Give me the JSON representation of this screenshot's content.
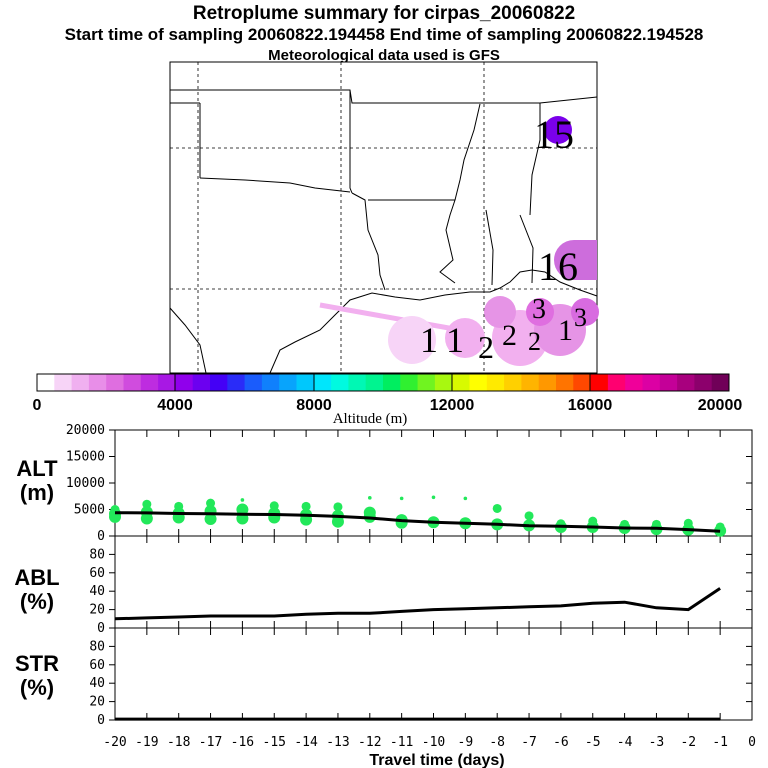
{
  "header": {
    "title": "Retroplume summary for cirpas_20060822",
    "sampling": "Start time of sampling 20060822.194458     End time of sampling 20060822.194528",
    "met": "Meteorological data used is GFS"
  },
  "colors": {
    "scale": [
      "#ffffff",
      "#f7d4f7",
      "#f0b0f0",
      "#e88ee8",
      "#df6ee0",
      "#d04cde",
      "#be2ce0",
      "#a818e4",
      "#9000ec",
      "#6c00f0",
      "#4400f6",
      "#2a2cf8",
      "#1a5cfc",
      "#1080fc",
      "#08a4fc",
      "#00c8fc",
      "#00e6fc",
      "#00fae0",
      "#00f8b4",
      "#00f490",
      "#00ee60",
      "#30f030",
      "#70f420",
      "#a8f810",
      "#d8fa00",
      "#ffff00",
      "#ffea00",
      "#ffd000",
      "#ffb400",
      "#ff9800",
      "#ff7400",
      "#ff4800",
      "#ff0000",
      "#ff0070",
      "#f0009a",
      "#dc00a4",
      "#c40098",
      "#a8007e",
      "#8c006c",
      "#700058"
    ],
    "dots": "#22e85a",
    "line": "#000000",
    "plume_pink": "#f2b0ef",
    "plume_purple": "#cd6ddc",
    "label_15": "#7a00ea"
  },
  "map": {
    "labels": [
      "15",
      "16",
      "1",
      "1",
      "1",
      "2",
      "2",
      "3",
      "2",
      "3"
    ]
  },
  "colorbar": {
    "ticks": [
      "0",
      "4000",
      "8000",
      "12000",
      "16000",
      "20000"
    ],
    "label": "Altitude (m)"
  },
  "panels": {
    "alt": {
      "label_top": "ALT",
      "label_bottom": "(m)",
      "ticks": [
        "0",
        "5000",
        "10000",
        "15000",
        "20000"
      ]
    },
    "abl": {
      "label_top": "ABL",
      "label_bottom": "(%)",
      "ticks": [
        "0",
        "20",
        "40",
        "60",
        "80"
      ]
    },
    "str": {
      "label_top": "STR",
      "label_bottom": "(%)",
      "ticks": [
        "0",
        "20",
        "40",
        "60",
        "80"
      ]
    }
  },
  "xaxis": {
    "ticks": [
      "-20",
      "-19",
      "-18",
      "-17",
      "-16",
      "-15",
      "-14",
      "-13",
      "-12",
      "-11",
      "-10",
      "-9",
      "-8",
      "-7",
      "-6",
      "-5",
      "-4",
      "-3",
      "-2",
      "-1",
      "0"
    ],
    "label": "Travel time (days)"
  },
  "chart_data": {
    "type": "line",
    "title": "Retroplume summary for cirpas_20060822",
    "xlabel": "Travel time (days)",
    "xlim": [
      -20,
      0
    ],
    "x": [
      -20,
      -19,
      -18,
      -17,
      -16,
      -15,
      -14,
      -13,
      -12,
      -11,
      -10,
      -9,
      -8,
      -7,
      -6,
      -5,
      -4,
      -3,
      -2,
      -1
    ],
    "series": [
      {
        "name": "ALT (m)",
        "ylim": [
          0,
          20000
        ],
        "values": [
          4400,
          4350,
          4250,
          4200,
          4100,
          4050,
          3900,
          3700,
          3400,
          2900,
          2600,
          2400,
          2200,
          1950,
          1850,
          1700,
          1500,
          1450,
          1200,
          900
        ]
      },
      {
        "name": "ABL (%)",
        "ylim": [
          0,
          100
        ],
        "values": [
          10,
          11,
          12,
          13,
          13,
          13,
          15,
          16,
          16,
          18,
          20,
          21,
          22,
          23,
          24,
          27,
          28,
          22,
          20,
          43
        ]
      },
      {
        "name": "STR (%)",
        "ylim": [
          0,
          100
        ],
        "values": [
          1,
          1,
          1,
          1,
          1,
          1,
          1,
          1,
          1,
          1,
          1,
          1,
          1,
          1,
          1,
          1,
          1,
          1,
          1,
          1
        ]
      }
    ],
    "alt_clusters": [
      {
        "x": -20,
        "alts": [
          5000,
          4200,
          3600
        ]
      },
      {
        "x": -19,
        "alts": [
          6000,
          4500,
          3300
        ]
      },
      {
        "x": -18,
        "alts": [
          5600,
          4300,
          3500
        ]
      },
      {
        "x": -17,
        "alts": [
          6200,
          4700,
          3200
        ]
      },
      {
        "x": -16,
        "alts": [
          6800,
          5000,
          3300
        ]
      },
      {
        "x": -15,
        "alts": [
          5700,
          4300,
          3500
        ]
      },
      {
        "x": -14,
        "alts": [
          5600,
          4000,
          3100
        ]
      },
      {
        "x": -13,
        "alts": [
          5500,
          3800,
          2700
        ]
      },
      {
        "x": -12,
        "alts": [
          7200,
          4400,
          3600
        ]
      },
      {
        "x": -11,
        "alts": [
          7100,
          3000,
          2500
        ]
      },
      {
        "x": -10,
        "alts": [
          7300,
          2600
        ]
      },
      {
        "x": -9,
        "alts": [
          7100,
          2400
        ]
      },
      {
        "x": -8,
        "alts": [
          5200,
          2200
        ]
      },
      {
        "x": -7,
        "alts": [
          3800,
          2000
        ]
      },
      {
        "x": -6,
        "alts": [
          2300,
          1700
        ]
      },
      {
        "x": -5,
        "alts": [
          2800,
          1700
        ]
      },
      {
        "x": -4,
        "alts": [
          2200,
          1500
        ]
      },
      {
        "x": -3,
        "alts": [
          2200,
          1300
        ]
      },
      {
        "x": -2,
        "alts": [
          2400,
          1200
        ]
      },
      {
        "x": -1,
        "alts": [
          1700,
          1000
        ]
      }
    ]
  }
}
